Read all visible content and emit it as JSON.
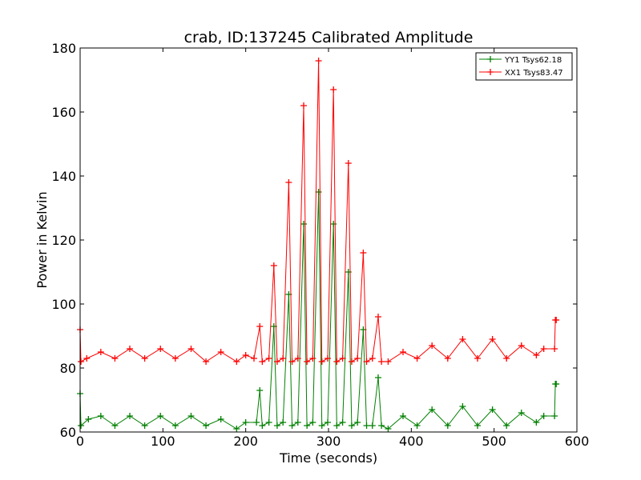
{
  "chart_data": {
    "type": "line",
    "title": "crab, ID:137245 Calibrated Amplitude",
    "xlabel": "Time (seconds)",
    "ylabel": "Power in Kelvin",
    "xlim": [
      0,
      600
    ],
    "ylim": [
      60,
      180
    ],
    "xticks": [
      "0",
      "100",
      "200",
      "300",
      "400",
      "500",
      "600"
    ],
    "yticks": [
      "60",
      "80",
      "100",
      "120",
      "140",
      "160",
      "180"
    ],
    "grid": false,
    "legend_position": "top-right",
    "marker": "+",
    "series": [
      {
        "name": "YY1 Tsys62.18",
        "color": "#008000",
        "x": [
          0,
          1,
          10,
          25,
          42,
          60,
          78,
          97,
          115,
          134,
          152,
          170,
          189,
          200,
          213,
          217,
          220,
          228,
          234,
          238,
          245,
          252,
          256,
          263,
          270,
          274,
          281,
          288,
          292,
          299,
          306,
          310,
          317,
          324,
          328,
          335,
          342,
          346,
          353,
          360,
          364,
          372,
          390,
          407,
          425,
          444,
          462,
          480,
          498,
          515,
          533,
          551,
          560,
          573,
          574,
          575
        ],
        "y": [
          72,
          62,
          64,
          65,
          62,
          65,
          62,
          65,
          62,
          65,
          62,
          64,
          61,
          63,
          63,
          73,
          62,
          63,
          93,
          62,
          63,
          103,
          62,
          63,
          125,
          62,
          63,
          135,
          62,
          63,
          125,
          62,
          63,
          110,
          62,
          63,
          92,
          62,
          62,
          77,
          62,
          61,
          65,
          62,
          67,
          62,
          68,
          62,
          67,
          62,
          66,
          63,
          65,
          65,
          75,
          75
        ]
      },
      {
        "name": "XX1 Tsys83.47",
        "color": "#ff0000",
        "x": [
          0,
          1,
          8,
          25,
          42,
          60,
          78,
          97,
          115,
          134,
          152,
          170,
          189,
          200,
          210,
          217,
          220,
          228,
          234,
          238,
          245,
          252,
          256,
          263,
          270,
          274,
          281,
          288,
          292,
          299,
          306,
          310,
          317,
          324,
          328,
          335,
          342,
          346,
          353,
          360,
          364,
          372,
          390,
          407,
          425,
          444,
          462,
          480,
          498,
          515,
          533,
          551,
          560,
          573,
          574,
          575
        ],
        "y": [
          92,
          82,
          83,
          85,
          83,
          86,
          83,
          86,
          83,
          86,
          82,
          85,
          82,
          84,
          83,
          93,
          82,
          83,
          112,
          82,
          83,
          138,
          82,
          83,
          162,
          82,
          83,
          176,
          82,
          83,
          167,
          82,
          83,
          144,
          82,
          83,
          116,
          82,
          83,
          96,
          82,
          82,
          85,
          83,
          87,
          83,
          89,
          83,
          89,
          83,
          87,
          84,
          86,
          86,
          95,
          95
        ]
      }
    ]
  }
}
